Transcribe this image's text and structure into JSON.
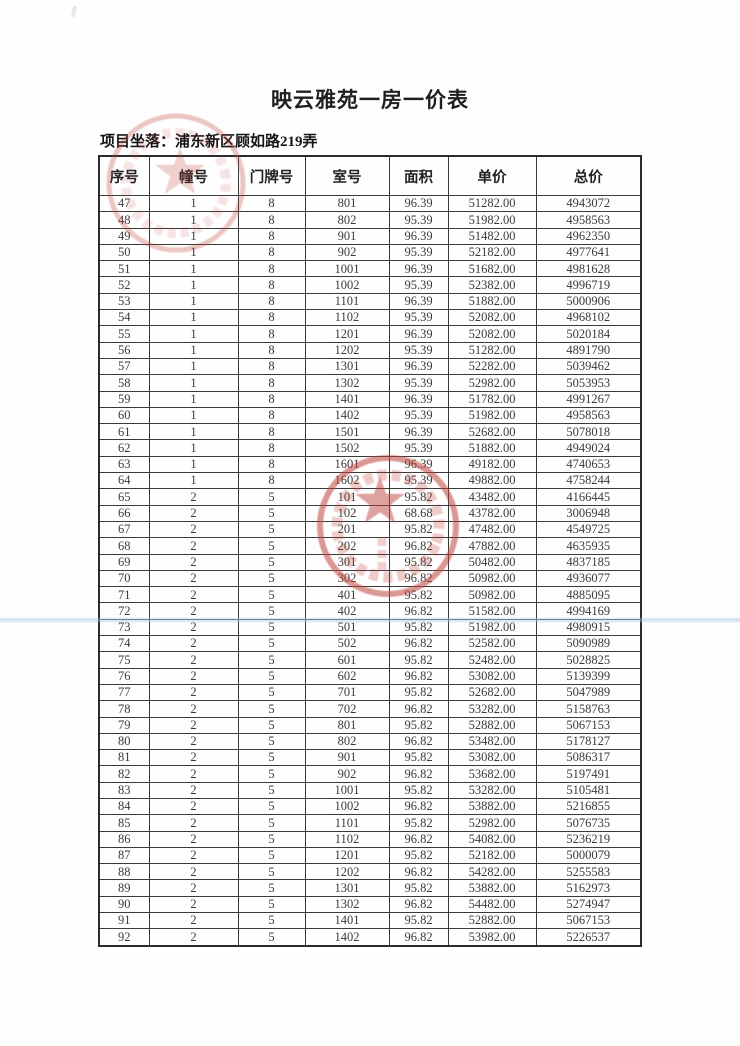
{
  "page": {
    "title": "映云雅苑一房一价表",
    "location": "项目坐落：浦东新区顾如路219弄"
  },
  "table": {
    "headers": [
      "序号",
      "幢号",
      "门牌号",
      "室号",
      "面积",
      "单价",
      "总价"
    ],
    "rows": [
      [
        "47",
        "1",
        "8",
        "801",
        "96.39",
        "51282.00",
        "4943072"
      ],
      [
        "48",
        "1",
        "8",
        "802",
        "95.39",
        "51982.00",
        "4958563"
      ],
      [
        "49",
        "1",
        "8",
        "901",
        "96.39",
        "51482.00",
        "4962350"
      ],
      [
        "50",
        "1",
        "8",
        "902",
        "95.39",
        "52182.00",
        "4977641"
      ],
      [
        "51",
        "1",
        "8",
        "1001",
        "96.39",
        "51682.00",
        "4981628"
      ],
      [
        "52",
        "1",
        "8",
        "1002",
        "95.39",
        "52382.00",
        "4996719"
      ],
      [
        "53",
        "1",
        "8",
        "1101",
        "96.39",
        "51882.00",
        "5000906"
      ],
      [
        "54",
        "1",
        "8",
        "1102",
        "95.39",
        "52082.00",
        "4968102"
      ],
      [
        "55",
        "1",
        "8",
        "1201",
        "96.39",
        "52082.00",
        "5020184"
      ],
      [
        "56",
        "1",
        "8",
        "1202",
        "95.39",
        "51282.00",
        "4891790"
      ],
      [
        "57",
        "1",
        "8",
        "1301",
        "96.39",
        "52282.00",
        "5039462"
      ],
      [
        "58",
        "1",
        "8",
        "1302",
        "95.39",
        "52982.00",
        "5053953"
      ],
      [
        "59",
        "1",
        "8",
        "1401",
        "96.39",
        "51782.00",
        "4991267"
      ],
      [
        "60",
        "1",
        "8",
        "1402",
        "95.39",
        "51982.00",
        "4958563"
      ],
      [
        "61",
        "1",
        "8",
        "1501",
        "96.39",
        "52682.00",
        "5078018"
      ],
      [
        "62",
        "1",
        "8",
        "1502",
        "95.39",
        "51882.00",
        "4949024"
      ],
      [
        "63",
        "1",
        "8",
        "1601",
        "96.39",
        "49182.00",
        "4740653"
      ],
      [
        "64",
        "1",
        "8",
        "1602",
        "95.39",
        "49882.00",
        "4758244"
      ],
      [
        "65",
        "2",
        "5",
        "101",
        "95.82",
        "43482.00",
        "4166445"
      ],
      [
        "66",
        "2",
        "5",
        "102",
        "68.68",
        "43782.00",
        "3006948"
      ],
      [
        "67",
        "2",
        "5",
        "201",
        "95.82",
        "47482.00",
        "4549725"
      ],
      [
        "68",
        "2",
        "5",
        "202",
        "96.82",
        "47882.00",
        "4635935"
      ],
      [
        "69",
        "2",
        "5",
        "301",
        "95.82",
        "50482.00",
        "4837185"
      ],
      [
        "70",
        "2",
        "5",
        "302",
        "96.82",
        "50982.00",
        "4936077"
      ],
      [
        "71",
        "2",
        "5",
        "401",
        "95.82",
        "50982.00",
        "4885095"
      ],
      [
        "72",
        "2",
        "5",
        "402",
        "96.82",
        "51582.00",
        "4994169"
      ],
      [
        "73",
        "2",
        "5",
        "501",
        "95.82",
        "51982.00",
        "4980915"
      ],
      [
        "74",
        "2",
        "5",
        "502",
        "96.82",
        "52582.00",
        "5090989"
      ],
      [
        "75",
        "2",
        "5",
        "601",
        "95.82",
        "52482.00",
        "5028825"
      ],
      [
        "76",
        "2",
        "5",
        "602",
        "96.82",
        "53082.00",
        "5139399"
      ],
      [
        "77",
        "2",
        "5",
        "701",
        "95.82",
        "52682.00",
        "5047989"
      ],
      [
        "78",
        "2",
        "5",
        "702",
        "96.82",
        "53282.00",
        "5158763"
      ],
      [
        "79",
        "2",
        "5",
        "801",
        "95.82",
        "52882.00",
        "5067153"
      ],
      [
        "80",
        "2",
        "5",
        "802",
        "96.82",
        "53482.00",
        "5178127"
      ],
      [
        "81",
        "2",
        "5",
        "901",
        "95.82",
        "53082.00",
        "5086317"
      ],
      [
        "82",
        "2",
        "5",
        "902",
        "96.82",
        "53682.00",
        "5197491"
      ],
      [
        "83",
        "2",
        "5",
        "1001",
        "95.82",
        "53282.00",
        "5105481"
      ],
      [
        "84",
        "2",
        "5",
        "1002",
        "96.82",
        "53882.00",
        "5216855"
      ],
      [
        "85",
        "2",
        "5",
        "1101",
        "95.82",
        "52982.00",
        "5076735"
      ],
      [
        "86",
        "2",
        "5",
        "1102",
        "96.82",
        "54082.00",
        "5236219"
      ],
      [
        "87",
        "2",
        "5",
        "1201",
        "95.82",
        "52182.00",
        "5000079"
      ],
      [
        "88",
        "2",
        "5",
        "1202",
        "96.82",
        "54282.00",
        "5255583"
      ],
      [
        "89",
        "2",
        "5",
        "1301",
        "95.82",
        "53882.00",
        "5162973"
      ],
      [
        "90",
        "2",
        "5",
        "1302",
        "96.82",
        "54482.00",
        "5274947"
      ],
      [
        "91",
        "2",
        "5",
        "1401",
        "95.82",
        "52882.00",
        "5067153"
      ],
      [
        "92",
        "2",
        "5",
        "1402",
        "96.82",
        "53982.00",
        "5226537"
      ]
    ]
  },
  "stamps": {
    "top_stamp_icon": "red-circular-star-seal",
    "middle_stamp_icon": "red-circular-star-seal"
  },
  "colors": {
    "stamp_red": "#c0443c",
    "table_border": "#3a3a3a",
    "scan_blue_line": "#9ec8e4"
  }
}
